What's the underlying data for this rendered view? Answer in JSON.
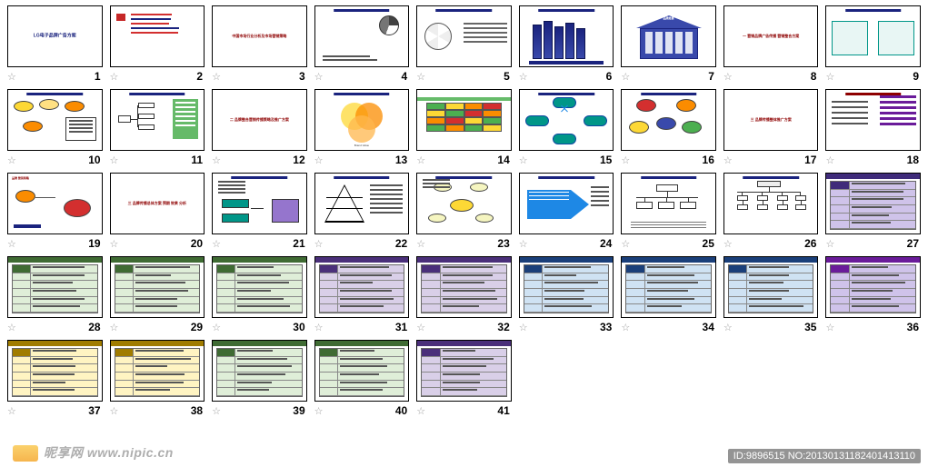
{
  "watermark": {
    "site": "昵享网  www.nipic.cn",
    "id": "ID:9896515 NO:20130131182401413110"
  },
  "colors": {
    "navy": "#1a237e",
    "blue": "#3949ab",
    "lightblue": "#1e88e5",
    "red": "#d32f2f",
    "darkred": "#8e0000",
    "orange": "#fb8c00",
    "yellow": "#fdd835",
    "green": "#4caf50",
    "teal": "#009688",
    "purple": "#9575cd",
    "dpurple": "#6a1b9a",
    "grey": "#9e9e9e",
    "brown": "#8d6e63",
    "lav": "#cfc3ea",
    "lavh": "#3f2b7a",
    "gtab": "#dfeed8",
    "gtabh": "#3f6b33",
    "ptab": "#d9cfe8",
    "btab": "#cfe2f3",
    "ytab": "#fff4c2"
  },
  "slides": [
    {
      "n": 1,
      "kind": "title",
      "title": "LG电子品牌广告方案"
    },
    {
      "n": 2,
      "kind": "agenda",
      "lines": [
        "#d32f2f",
        "#1a237e",
        "#d32f2f",
        "#1a237e",
        "#d32f2f"
      ]
    },
    {
      "n": 3,
      "kind": "center",
      "title": "中国市场行业分析及市场营销策略"
    },
    {
      "n": 4,
      "kind": "pie"
    },
    {
      "n": 5,
      "kind": "wheel"
    },
    {
      "n": 6,
      "kind": "cols"
    },
    {
      "n": 7,
      "kind": "building"
    },
    {
      "n": 8,
      "kind": "center",
      "title": "一 营销品牌广告传播 营销整合方案"
    },
    {
      "n": 9,
      "kind": "split2"
    },
    {
      "n": 10,
      "kind": "bubbles"
    },
    {
      "n": 11,
      "kind": "tree"
    },
    {
      "n": 12,
      "kind": "center",
      "title": "二 品牌整合营销传播策略及推广方案"
    },
    {
      "n": 13,
      "kind": "venn"
    },
    {
      "n": 14,
      "kind": "ctable"
    },
    {
      "n": 15,
      "kind": "flow4"
    },
    {
      "n": 16,
      "kind": "bubbles2"
    },
    {
      "n": 17,
      "kind": "center",
      "title": "三 品牌传播整体推广方案"
    },
    {
      "n": 18,
      "kind": "list-side"
    },
    {
      "n": 19,
      "kind": "two-ov"
    },
    {
      "n": 20,
      "kind": "center",
      "title": "三 品牌传播总体方案 预期 效果 分析"
    },
    {
      "n": 21,
      "kind": "three-box"
    },
    {
      "n": 22,
      "kind": "triangle"
    },
    {
      "n": 23,
      "kind": "ellipse-net"
    },
    {
      "n": 24,
      "kind": "blue-arrow"
    },
    {
      "n": 25,
      "kind": "org"
    },
    {
      "n": 26,
      "kind": "org2"
    },
    {
      "n": 27,
      "kind": "ptable",
      "c": "#cfc3ea",
      "h": "#3f2b7a"
    },
    {
      "n": 28,
      "kind": "ptable",
      "c": "#dfeed8",
      "h": "#3f6b33"
    },
    {
      "n": 29,
      "kind": "ptable",
      "c": "#dfeed8",
      "h": "#3f6b33"
    },
    {
      "n": 30,
      "kind": "ptable",
      "c": "#dfeed8",
      "h": "#3f6b33"
    },
    {
      "n": 31,
      "kind": "ptable",
      "c": "#d9cfe8",
      "h": "#4a2f7a"
    },
    {
      "n": 32,
      "kind": "ptable",
      "c": "#d9cfe8",
      "h": "#4a2f7a"
    },
    {
      "n": 33,
      "kind": "ptable",
      "c": "#cfe2f3",
      "h": "#1a3f7a"
    },
    {
      "n": 34,
      "kind": "ptable",
      "c": "#cfe2f3",
      "h": "#1a3f7a"
    },
    {
      "n": 35,
      "kind": "ptable",
      "c": "#cfe2f3",
      "h": "#1a3f7a"
    },
    {
      "n": 36,
      "kind": "ptable",
      "c": "#cfc3ea",
      "h": "#6a1b9a"
    },
    {
      "n": 37,
      "kind": "ptable",
      "c": "#fff4c2",
      "h": "#a07c00"
    },
    {
      "n": 38,
      "kind": "ptable",
      "c": "#fff4c2",
      "h": "#a07c00"
    },
    {
      "n": 39,
      "kind": "ptable",
      "c": "#dfeed8",
      "h": "#3f6b33"
    },
    {
      "n": 40,
      "kind": "ptable",
      "c": "#dfeed8",
      "h": "#3f6b33"
    },
    {
      "n": 41,
      "kind": "ptable",
      "c": "#d9cfe8",
      "h": "#4a2f7a"
    }
  ]
}
